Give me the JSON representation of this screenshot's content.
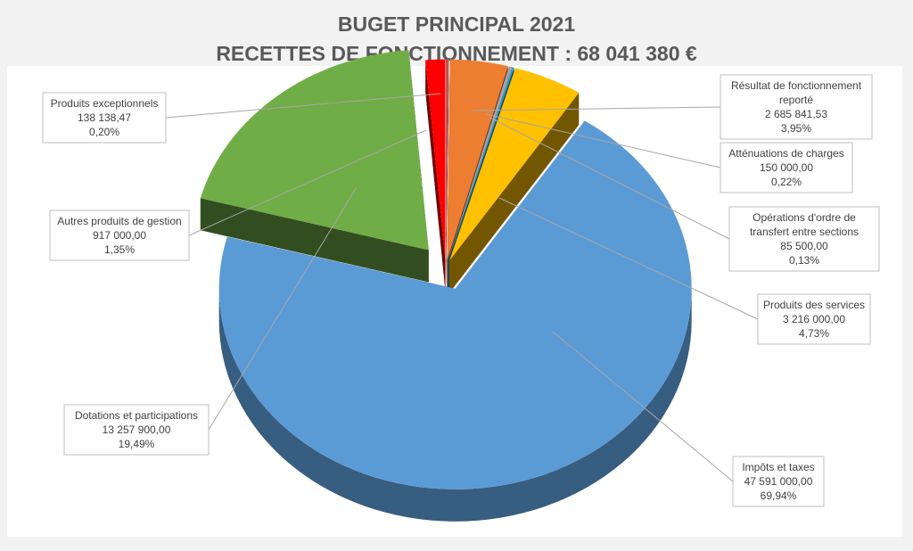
{
  "chart_data": {
    "type": "pie",
    "title": "BUGET PRINCIPAL 2021",
    "subtitle": "RECETTES DE FONCTIONNEMENT : 68 041 380 €",
    "slices": [
      {
        "name": "Produits exceptionnels",
        "value_text": "138 138,47",
        "percent_text": "0,20%",
        "value": 138138.47,
        "percent": 0.2,
        "color": "#c0504d"
      },
      {
        "name": "Résultat de fonctionnement reporté",
        "value_text": "2 685 841,53",
        "percent_text": "3,95%",
        "value": 2685841.53,
        "percent": 3.95,
        "color": "#ed7d31"
      },
      {
        "name": "Atténuations de charges",
        "value_text": "150 000,00",
        "percent_text": "0,22%",
        "value": 150000.0,
        "percent": 0.22,
        "color": "#a5a5a5"
      },
      {
        "name": "Opérations d'ordre de transfert entre sections",
        "value_text": "85 500,00",
        "percent_text": "0,13%",
        "value": 85500.0,
        "percent": 0.13,
        "color": "#2e9fd8"
      },
      {
        "name": "Produits des services",
        "value_text": "3 216 000,00",
        "percent_text": "4,73%",
        "value": 3216000.0,
        "percent": 4.73,
        "color": "#ffc000"
      },
      {
        "name": "Impôts et taxes",
        "value_text": "47 591 000,00",
        "percent_text": "69,94%",
        "value": 47591000.0,
        "percent": 69.94,
        "color": "#5b9bd5"
      },
      {
        "name": "Dotations et participations",
        "value_text": "13 257 900,00",
        "percent_text": "19,49%",
        "value": 13257900.0,
        "percent": 19.49,
        "color": "#70ad47"
      },
      {
        "name": "Autres produits de gestion",
        "value_text": "917 000,00",
        "percent_text": "1,35%",
        "value": 917000.0,
        "percent": 1.35,
        "color": "#ff0000"
      }
    ]
  }
}
